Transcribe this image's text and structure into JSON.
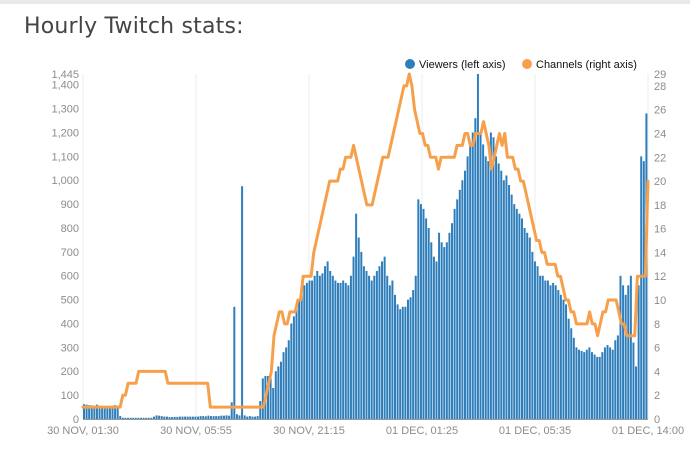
{
  "page": {
    "title": "Hourly Twitch stats:"
  },
  "chart_data": {
    "type": "bar+line",
    "title": "Hourly Twitch stats:",
    "legend_position": "top-right",
    "series": [
      {
        "name": "Viewers (left axis)",
        "kind": "bar",
        "axis": "left",
        "color": "#2f7ebc",
        "values": [
          62,
          60,
          58,
          57,
          55,
          60,
          56,
          55,
          53,
          53,
          52,
          56,
          58,
          55,
          12,
          5,
          5,
          5,
          5,
          5,
          5,
          5,
          5,
          5,
          5,
          5,
          5,
          10,
          15,
          14,
          12,
          10,
          10,
          8,
          8,
          9,
          9,
          10,
          10,
          10,
          10,
          10,
          10,
          10,
          10,
          12,
          12,
          11,
          14,
          12,
          12,
          12,
          12,
          14,
          14,
          15,
          14,
          70,
          470,
          20,
          15,
          975,
          15,
          10,
          12,
          10,
          10,
          12,
          75,
          170,
          180,
          180,
          170,
          130,
          200,
          220,
          240,
          280,
          300,
          330,
          400,
          430,
          480,
          500,
          520,
          560,
          570,
          580,
          580,
          600,
          620,
          600,
          610,
          640,
          660,
          620,
          600,
          580,
          570,
          570,
          580,
          570,
          560,
          600,
          680,
          860,
          760,
          700,
          640,
          620,
          600,
          580,
          600,
          620,
          640,
          660,
          680,
          600,
          560,
          580,
          520,
          480,
          460,
          470,
          470,
          500,
          510,
          540,
          600,
          920,
          900,
          880,
          840,
          800,
          740,
          680,
          660,
          780,
          740,
          720,
          740,
          780,
          820,
          880,
          920,
          960,
          1000,
          1040,
          1100,
          1160,
          1200,
          1260,
          1445,
          1200,
          1150,
          1100,
          1080,
          1200,
          1180,
          1100,
          1070,
          1040,
          1000,
          1020,
          980,
          940,
          900,
          880,
          860,
          840,
          800,
          780,
          760,
          700,
          660,
          640,
          600,
          600,
          580,
          580,
          560,
          570,
          560,
          540,
          520,
          500,
          480,
          420,
          380,
          340,
          300,
          290,
          285,
          280,
          290,
          300,
          280,
          270,
          260,
          260,
          280,
          300,
          310,
          300,
          290,
          330,
          350,
          600,
          560,
          520,
          560,
          600,
          320,
          220,
          560,
          1100,
          1080,
          1280
        ]
      },
      {
        "name": "Channels (right axis)",
        "kind": "line",
        "axis": "right",
        "color": "#f7a04b",
        "values": [
          1,
          1,
          1,
          1,
          1,
          1,
          1,
          1,
          1,
          1,
          1,
          1,
          1,
          1,
          1,
          2,
          2,
          3,
          3,
          3,
          3,
          4,
          4,
          4,
          4,
          4,
          4,
          4,
          4,
          4,
          4,
          4,
          3,
          3,
          3,
          3,
          3,
          3,
          3,
          3,
          3,
          3,
          3,
          3,
          3,
          3,
          3,
          3,
          1,
          1,
          1,
          1,
          1,
          1,
          1,
          1,
          1,
          1,
          1,
          1,
          1,
          1,
          1,
          1,
          1,
          1,
          1,
          1,
          1,
          2,
          3,
          4,
          7,
          8,
          9,
          9,
          8,
          8,
          9,
          9,
          9,
          10,
          10,
          12,
          12,
          12,
          12,
          14,
          15,
          16,
          17,
          18,
          19,
          20,
          20,
          20,
          20,
          21,
          21,
          22,
          22,
          22,
          23,
          22,
          21,
          20,
          19,
          18,
          18,
          18,
          19,
          20,
          21,
          22,
          22,
          22,
          23,
          24,
          25,
          26,
          27,
          28,
          28,
          29,
          28,
          26,
          25,
          24,
          24,
          23,
          23,
          22,
          22,
          22,
          21,
          22,
          22,
          22,
          22,
          22,
          22,
          23,
          23,
          23,
          24,
          24,
          23,
          23,
          24,
          24,
          24,
          25,
          24,
          23,
          21,
          22,
          23,
          24,
          23,
          24,
          22,
          22,
          22,
          21,
          21,
          20,
          20,
          19,
          18,
          17,
          16,
          15,
          15,
          14,
          14,
          13,
          13,
          13,
          13,
          12,
          12,
          11,
          10,
          10,
          9,
          9,
          8,
          8,
          8,
          8,
          8,
          9,
          8,
          8,
          7,
          8,
          9,
          9,
          10,
          10,
          10,
          10,
          9,
          8,
          8,
          7,
          7,
          7,
          7,
          12,
          12,
          12,
          12,
          20
        ]
      }
    ],
    "left_axis": {
      "ylim": [
        0,
        1445
      ],
      "ticks": [
        0,
        100,
        200,
        300,
        400,
        500,
        600,
        700,
        800,
        900,
        1000,
        1100,
        1200,
        1300,
        1400
      ],
      "tick_labels": [
        "0",
        "100",
        "200",
        "300",
        "400",
        "500",
        "600",
        "700",
        "800",
        "900",
        "1,000",
        "1,100",
        "1,200",
        "1,300",
        "1,400"
      ],
      "max_label": "1,445"
    },
    "right_axis": {
      "ylim": [
        0,
        29
      ],
      "tick_labels": [
        "0",
        "2",
        "4",
        "6",
        "8",
        "10",
        "12",
        "14",
        "16",
        "18",
        "20",
        "22",
        "24",
        "26",
        "28",
        "29"
      ]
    },
    "x_axis": {
      "tick_labels": [
        "30 NOV, 01:30",
        "30 NOV, 05:55",
        "30 NOV, 21:15",
        "01 DEC, 01:25",
        "01 DEC, 05:35",
        "01 DEC, 14:00"
      ]
    },
    "grid": true
  }
}
